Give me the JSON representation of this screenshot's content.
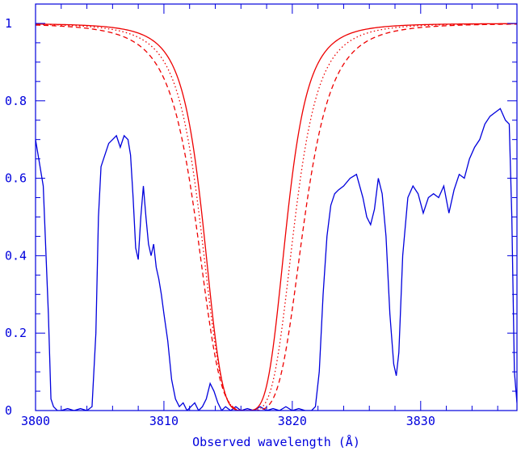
{
  "chart_data": {
    "type": "line",
    "title": "",
    "xlabel": "Observed wavelength (Å)",
    "ylabel": "",
    "xlim": [
      3800,
      3837.5
    ],
    "ylim": [
      0,
      1.05
    ],
    "x_ticks": [
      3800,
      3810,
      3820,
      3830
    ],
    "x_tick_labels": [
      "3800",
      "3810",
      "3820",
      "3830"
    ],
    "y_ticks": [
      0,
      0.2,
      0.4,
      0.6,
      0.8,
      1
    ],
    "y_tick_labels": [
      "0",
      "0.2",
      "0.4",
      "0.6",
      "0.8",
      "1"
    ],
    "grid": false,
    "colors": {
      "axis": "#0000dd",
      "spectrum": "#0000dd",
      "model": "#ee0000"
    },
    "series": [
      {
        "style": "solid-blue",
        "x": [
          3800.0,
          3800.3,
          3800.6,
          3801.0,
          3801.2,
          3801.4,
          3801.7,
          3802.0,
          3802.5,
          3803.0,
          3803.5,
          3804.0,
          3804.4,
          3804.7,
          3804.9,
          3805.1,
          3805.4,
          3805.7,
          3806.0,
          3806.3,
          3806.6,
          3806.9,
          3807.2,
          3807.4,
          3807.6,
          3807.8,
          3808.0,
          3808.2,
          3808.4,
          3808.6,
          3808.8,
          3809.0,
          3809.2,
          3809.4,
          3809.6,
          3809.8,
          3810.0,
          3810.3,
          3810.6,
          3810.9,
          3811.2,
          3811.5,
          3811.8,
          3812.1,
          3812.4,
          3812.7,
          3813.0,
          3813.3,
          3813.6,
          3813.9,
          3814.2,
          3814.5,
          3814.8,
          3815.2,
          3815.6,
          3816.0,
          3816.5,
          3817.0,
          3817.5,
          3818.0,
          3818.5,
          3819.0,
          3819.5,
          3820.0,
          3820.5,
          3821.0,
          3821.5,
          3821.8,
          3822.1,
          3822.4,
          3822.7,
          3823.0,
          3823.3,
          3823.6,
          3824.0,
          3824.5,
          3825.0,
          3825.5,
          3825.8,
          3826.1,
          3826.4,
          3826.7,
          3827.0,
          3827.3,
          3827.6,
          3827.9,
          3828.1,
          3828.3,
          3828.6,
          3829.0,
          3829.4,
          3829.8,
          3830.2,
          3830.6,
          3831.0,
          3831.4,
          3831.8,
          3832.2,
          3832.6,
          3833.0,
          3833.4,
          3833.8,
          3834.2,
          3834.6,
          3835.0,
          3835.4,
          3835.8,
          3836.2,
          3836.6,
          3836.9,
          3837.1,
          3837.3,
          3837.5
        ],
        "y": [
          0.7,
          0.64,
          0.58,
          0.25,
          0.03,
          0.01,
          0.0,
          0.0,
          0.005,
          0.0,
          0.005,
          0.0,
          0.01,
          0.2,
          0.5,
          0.63,
          0.66,
          0.69,
          0.7,
          0.71,
          0.68,
          0.71,
          0.7,
          0.66,
          0.55,
          0.42,
          0.39,
          0.5,
          0.58,
          0.5,
          0.43,
          0.4,
          0.43,
          0.37,
          0.34,
          0.3,
          0.25,
          0.18,
          0.08,
          0.03,
          0.01,
          0.02,
          0.0,
          0.01,
          0.02,
          0.0,
          0.01,
          0.03,
          0.07,
          0.05,
          0.02,
          0.0,
          0.01,
          0.0,
          0.01,
          0.0,
          0.005,
          0.0,
          0.01,
          0.0,
          0.005,
          0.0,
          0.01,
          0.0,
          0.005,
          0.0,
          0.0,
          0.01,
          0.1,
          0.3,
          0.45,
          0.53,
          0.56,
          0.57,
          0.58,
          0.6,
          0.61,
          0.55,
          0.5,
          0.48,
          0.52,
          0.6,
          0.56,
          0.45,
          0.25,
          0.12,
          0.09,
          0.15,
          0.4,
          0.55,
          0.58,
          0.56,
          0.51,
          0.55,
          0.56,
          0.55,
          0.58,
          0.51,
          0.57,
          0.61,
          0.6,
          0.65,
          0.68,
          0.7,
          0.74,
          0.76,
          0.77,
          0.78,
          0.75,
          0.74,
          0.5,
          0.1,
          0.02
        ]
      },
      {
        "style": "solid-red",
        "profile": {
          "center": 3816.3,
          "width": 6.64,
          "depth": 1.0
        }
      },
      {
        "style": "dotted-red",
        "profile": {
          "center": 3816.5,
          "width": 7.47,
          "depth": 1.0
        }
      },
      {
        "style": "dashed-red",
        "profile": {
          "center": 3816.7,
          "width": 8.55,
          "depth": 1.0
        }
      }
    ]
  }
}
